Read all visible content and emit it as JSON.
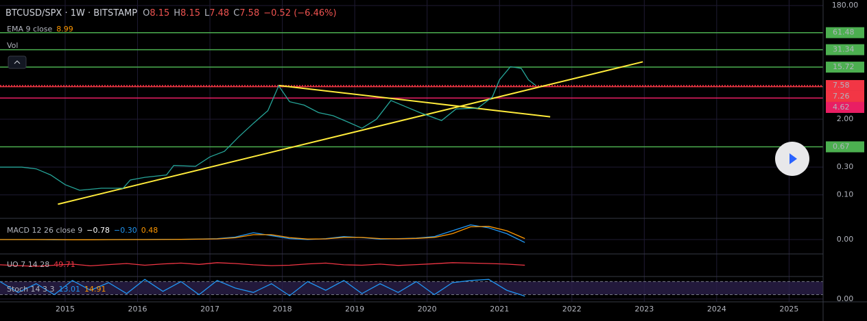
{
  "header": {
    "symbol": "BTCUSD/SPX · 1W · BITSTAMP",
    "ohlc": [
      {
        "label": "O",
        "value": "8.15"
      },
      {
        "label": "H",
        "value": "8.15"
      },
      {
        "label": "L",
        "value": "7.48"
      },
      {
        "label": "C",
        "value": "7.58"
      }
    ],
    "change": "−0.52 (−6.46%)"
  },
  "indicators": {
    "ema": {
      "name": "EMA 9 close",
      "value": "8.99"
    },
    "vol": "Vol",
    "macd": {
      "name": "MACD 12 26 close 9",
      "values": [
        "−0.78",
        "−0.30",
        "0.48"
      ]
    },
    "uo": {
      "name": "UO 7 14 28",
      "value": "49.71"
    },
    "stoch": {
      "name": "Stoch 14 3 3",
      "values": [
        "13.01",
        "14.91"
      ]
    }
  },
  "chart_data": [
    {
      "type": "line",
      "log": true,
      "xlim": [
        2014.1,
        2025.47
      ],
      "ylim": [
        0.0406,
        224
      ],
      "xticks": [
        2015,
        2016,
        2017,
        2018,
        2019,
        2020,
        2021,
        2022,
        2023,
        2024,
        2025
      ],
      "yticks": [
        {
          "value": 180,
          "label": "180.00"
        },
        {
          "value": 2,
          "label": "2.00"
        },
        {
          "value": 0.3,
          "label": "0.30"
        },
        {
          "value": 0.1,
          "label": "0.10"
        }
      ],
      "x": [
        2014.1,
        2014.4,
        2014.6,
        2014.8,
        2015.0,
        2015.2,
        2015.5,
        2015.8,
        2015.9,
        2016.1,
        2016.4,
        2016.5,
        2016.8,
        2017.0,
        2017.2,
        2017.4,
        2017.6,
        2017.8,
        2017.95,
        2018.1,
        2018.3,
        2018.5,
        2018.7,
        2018.9,
        2019.1,
        2019.3,
        2019.5,
        2019.7,
        2019.9,
        2020.2,
        2020.4,
        2020.7,
        2020.9,
        2021.0,
        2021.15,
        2021.3,
        2021.4,
        2021.5
      ],
      "series": [
        {
          "color": "#26a69a",
          "values": [
            0.3,
            0.3,
            0.28,
            0.22,
            0.15,
            0.12,
            0.13,
            0.13,
            0.18,
            0.2,
            0.22,
            0.32,
            0.31,
            0.45,
            0.56,
            1.0,
            1.7,
            2.8,
            7.5,
            4.0,
            3.5,
            2.6,
            2.3,
            1.8,
            1.4,
            2.0,
            4.2,
            3.3,
            2.6,
            1.9,
            3.0,
            3.1,
            4.8,
            9.5,
            16,
            15,
            9.5,
            7.6
          ]
        }
      ],
      "levels": [
        {
          "value": 61.48,
          "color": "#4caf50"
        },
        {
          "value": 31.34,
          "color": "#4caf50"
        },
        {
          "value": 15.72,
          "color": "#4caf50"
        },
        {
          "value": 7.58,
          "color": "#f23645"
        },
        {
          "value": 7.26,
          "color": "#f23645"
        },
        {
          "value": 4.62,
          "color": "#e91e63"
        },
        {
          "value": 0.67,
          "color": "#4caf50"
        }
      ],
      "trendlines": [
        {
          "x": [
            2014.9,
            2022.98
          ],
          "values": [
            0.069,
            19.4
          ],
          "color": "#ffeb3b"
        },
        {
          "x": [
            2017.95,
            2021.7
          ],
          "values": [
            7.6,
            2.2
          ],
          "color": "#ffeb3b"
        }
      ]
    },
    {
      "type": "line",
      "ylim": [
        -1.4,
        2.1
      ],
      "yticks": [
        {
          "value": 0,
          "label": "0.00"
        }
      ],
      "x": [
        2014.1,
        2014.35,
        2014.6,
        2014.85,
        2015.1,
        2015.35,
        2015.6,
        2015.85,
        2016.1,
        2016.35,
        2016.6,
        2016.85,
        2017.1,
        2017.35,
        2017.6,
        2017.85,
        2018.1,
        2018.35,
        2018.6,
        2018.85,
        2019.1,
        2019.35,
        2019.6,
        2019.85,
        2020.1,
        2020.35,
        2020.6,
        2020.85,
        2021.1,
        2021.35
      ],
      "series": [
        {
          "color": "#2196f3",
          "values": [
            0,
            0,
            0,
            -0.02,
            -0.03,
            -0.02,
            0,
            0,
            0.01,
            0.02,
            0.03,
            0.05,
            0.1,
            0.25,
            0.7,
            0.4,
            0.1,
            0,
            0.1,
            0.3,
            0.2,
            0.05,
            0.1,
            0.15,
            0.3,
            0.9,
            1.5,
            1.2,
            0.6,
            -0.3
          ]
        },
        {
          "color": "#ff9800",
          "values": [
            0,
            0,
            0,
            0,
            -0.02,
            -0.02,
            -0.01,
            0,
            0,
            0.01,
            0.02,
            0.04,
            0.07,
            0.18,
            0.5,
            0.5,
            0.2,
            0.05,
            0.07,
            0.22,
            0.22,
            0.1,
            0.08,
            0.12,
            0.22,
            0.6,
            1.3,
            1.35,
            0.9,
            0.1
          ]
        }
      ]
    },
    {
      "type": "line",
      "ylim": [
        0,
        100
      ],
      "x": [
        2014.1,
        2014.35,
        2014.6,
        2014.85,
        2015.1,
        2015.35,
        2015.6,
        2015.85,
        2016.1,
        2016.35,
        2016.6,
        2016.85,
        2017.1,
        2017.35,
        2017.6,
        2017.85,
        2018.1,
        2018.35,
        2018.6,
        2018.85,
        2019.1,
        2019.35,
        2019.6,
        2019.85,
        2020.1,
        2020.35,
        2020.6,
        2020.85,
        2021.1,
        2021.35
      ],
      "series": [
        {
          "color": "#f23645",
          "values": [
            52,
            48,
            45,
            50,
            55,
            47,
            53,
            58,
            50,
            56,
            60,
            54,
            62,
            58,
            52,
            48,
            50,
            56,
            60,
            52,
            50,
            55,
            49,
            53,
            57,
            62,
            60,
            58,
            55,
            50
          ]
        }
      ]
    },
    {
      "type": "line",
      "ylim": [
        -10,
        100
      ],
      "band": [
        20,
        80
      ],
      "yticks": [
        {
          "value": 0,
          "label": "0.00"
        }
      ],
      "x": [
        2014.1,
        2014.35,
        2014.6,
        2014.85,
        2015.1,
        2015.35,
        2015.6,
        2015.85,
        2016.1,
        2016.35,
        2016.6,
        2016.85,
        2017.1,
        2017.35,
        2017.6,
        2017.85,
        2018.1,
        2018.35,
        2018.6,
        2018.85,
        2019.1,
        2019.35,
        2019.6,
        2019.85,
        2020.1,
        2020.35,
        2020.6,
        2020.85,
        2021.1,
        2021.35
      ],
      "series": [
        {
          "color": "#2196f3",
          "values": [
            80,
            30,
            70,
            20,
            85,
            40,
            75,
            25,
            90,
            35,
            80,
            20,
            85,
            50,
            30,
            70,
            15,
            80,
            40,
            85,
            25,
            70,
            30,
            80,
            20,
            75,
            85,
            90,
            40,
            13
          ]
        }
      ]
    }
  ]
}
